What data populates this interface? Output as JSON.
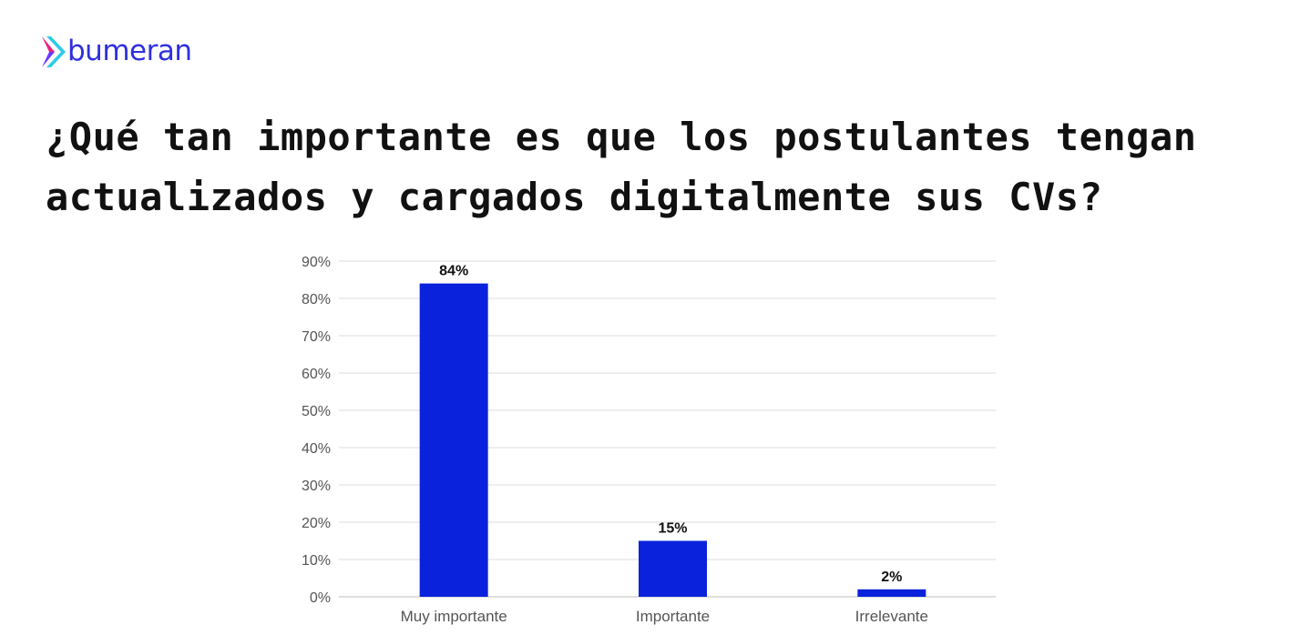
{
  "brand": {
    "name": "bumeran",
    "text_color": "#2f2fe0",
    "mark_colors": [
      "#e8227f",
      "#6a37ff",
      "#17c4e8"
    ]
  },
  "headline": {
    "line1": "¿Qué tan importante es que los postulantes tengan",
    "line2": "actualizados y cargados digitalmente sus CVs?"
  },
  "chart_data": {
    "type": "bar",
    "categories": [
      "Muy importante",
      "Importante",
      "Irrelevante"
    ],
    "values": [
      84,
      15,
      2
    ],
    "value_labels": [
      "84%",
      "15%",
      "2%"
    ],
    "ylim": [
      0,
      90
    ],
    "yticks": [
      0,
      10,
      20,
      30,
      40,
      50,
      60,
      70,
      80,
      90
    ],
    "ytick_labels": [
      "0%",
      "10%",
      "20%",
      "30%",
      "40%",
      "50%",
      "60%",
      "70%",
      "80%",
      "90%"
    ],
    "grid": true,
    "legend": "none",
    "bar_color": "#0a22dc",
    "grid_color": "#dcdcdc",
    "tick_color": "#555555"
  }
}
